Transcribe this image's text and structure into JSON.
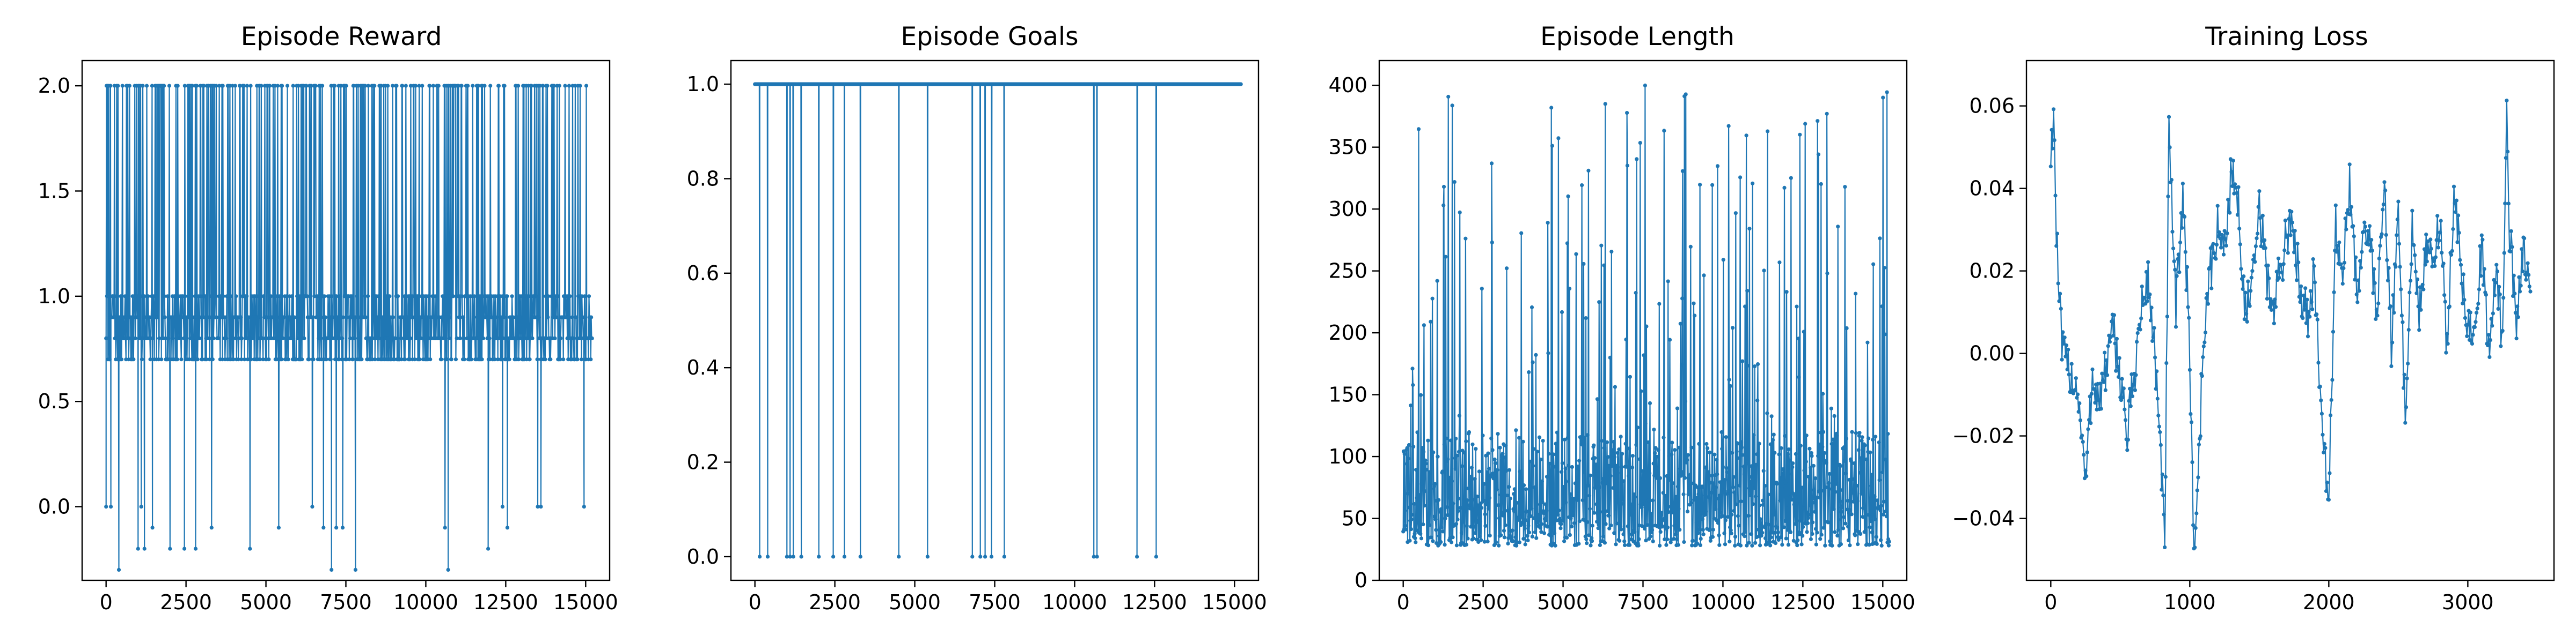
{
  "colors": {
    "series": "#1f77b4",
    "axes": "#000000",
    "background": "#ffffff"
  },
  "chart_data": [
    {
      "type": "line",
      "title": "Episode Reward",
      "xlabel": "",
      "ylabel": "",
      "xlim": [
        -750,
        15750
      ],
      "ylim": [
        -0.35,
        2.12
      ],
      "xticks": [
        0,
        2500,
        5000,
        7500,
        10000,
        12500,
        15000
      ],
      "yticks": [
        0.0,
        0.5,
        1.0,
        1.5,
        2.0
      ],
      "xtick_labels": [
        "0",
        "2500",
        "5000",
        "7500",
        "10000",
        "12500",
        "15000"
      ],
      "ytick_labels": [
        "0.0",
        "0.5",
        "1.0",
        "1.5",
        "2.0"
      ],
      "grid": false,
      "markers": true,
      "series": [
        {
          "points_count": 15200,
          "band": {
            "x_start": 0,
            "x_end": 15200,
            "min": 0.7,
            "max": 2.0,
            "levels": [
              0.7,
              0.8,
              0.9,
              1.0,
              2.0
            ]
          },
          "outliers": [
            [
              0,
              0.0
            ],
            [
              150,
              0.0
            ],
            [
              400,
              -0.3
            ],
            [
              1000,
              -0.2
            ],
            [
              1100,
              0.0
            ],
            [
              1200,
              -0.2
            ],
            [
              1450,
              -0.1
            ],
            [
              2000,
              -0.2
            ],
            [
              2450,
              -0.2
            ],
            [
              2800,
              -0.2
            ],
            [
              3300,
              -0.1
            ],
            [
              4500,
              -0.2
            ],
            [
              5400,
              -0.1
            ],
            [
              6450,
              0.0
            ],
            [
              6800,
              -0.1
            ],
            [
              7050,
              -0.3
            ],
            [
              7200,
              -0.1
            ],
            [
              7400,
              -0.1
            ],
            [
              7800,
              -0.3
            ],
            [
              10600,
              -0.1
            ],
            [
              10700,
              -0.3
            ],
            [
              11950,
              -0.2
            ],
            [
              12400,
              0.0
            ],
            [
              12550,
              -0.1
            ],
            [
              13500,
              0.0
            ],
            [
              13600,
              0.0
            ],
            [
              14950,
              0.0
            ]
          ]
        }
      ]
    },
    {
      "type": "line",
      "title": "Episode Goals",
      "xlabel": "",
      "ylabel": "",
      "xlim": [
        -750,
        15750
      ],
      "ylim": [
        -0.05,
        1.05
      ],
      "xticks": [
        0,
        2500,
        5000,
        7500,
        10000,
        12500,
        15000
      ],
      "yticks": [
        0.0,
        0.2,
        0.4,
        0.6,
        0.8,
        1.0
      ],
      "xtick_labels": [
        "0",
        "2500",
        "5000",
        "7500",
        "10000",
        "12500",
        "15000"
      ],
      "ytick_labels": [
        "0.0",
        "0.2",
        "0.4",
        "0.6",
        "0.8",
        "1.0"
      ],
      "grid": false,
      "markers": true,
      "series": [
        {
          "points_count": 15200,
          "band": {
            "x_start": 0,
            "x_end": 15200,
            "min": 1.0,
            "max": 1.0,
            "levels": [
              1.0
            ]
          },
          "outliers": [
            [
              150,
              0.0
            ],
            [
              400,
              0.0
            ],
            [
              1000,
              0.0
            ],
            [
              1100,
              0.0
            ],
            [
              1200,
              0.0
            ],
            [
              1450,
              0.0
            ],
            [
              2000,
              0.0
            ],
            [
              2450,
              0.0
            ],
            [
              2800,
              0.0
            ],
            [
              3300,
              0.0
            ],
            [
              4500,
              0.0
            ],
            [
              5400,
              0.0
            ],
            [
              6800,
              0.0
            ],
            [
              7050,
              0.0
            ],
            [
              7200,
              0.0
            ],
            [
              7400,
              0.0
            ],
            [
              7800,
              0.0
            ],
            [
              10600,
              0.0
            ],
            [
              10700,
              0.0
            ],
            [
              11950,
              0.0
            ],
            [
              12550,
              0.0
            ]
          ]
        }
      ]
    },
    {
      "type": "line",
      "title": "Episode Length",
      "xlabel": "",
      "ylabel": "",
      "xlim": [
        -750,
        15750
      ],
      "ylim": [
        0,
        420
      ],
      "xticks": [
        0,
        2500,
        5000,
        7500,
        10000,
        12500,
        15000
      ],
      "yticks": [
        0,
        50,
        100,
        150,
        200,
        250,
        300,
        350,
        400
      ],
      "xtick_labels": [
        "0",
        "2500",
        "5000",
        "7500",
        "10000",
        "12500",
        "15000"
      ],
      "ytick_labels": [
        "0",
        "50",
        "100",
        "150",
        "200",
        "250",
        "300",
        "350",
        "400"
      ],
      "grid": false,
      "markers": true,
      "series": [
        {
          "points_count": 15200,
          "band": {
            "x_start": 0,
            "x_end": 15200,
            "min": 25,
            "max": 400,
            "typical": [
              28,
              120
            ]
          },
          "outliers": []
        }
      ]
    },
    {
      "type": "line",
      "title": "Training Loss",
      "xlabel": "",
      "ylabel": "",
      "xlim": [
        -175,
        3620
      ],
      "ylim": [
        -0.055,
        0.071
      ],
      "xticks": [
        0,
        1000,
        2000,
        3000
      ],
      "yticks": [
        -0.04,
        -0.02,
        0.0,
        0.02,
        0.04,
        0.06
      ],
      "xtick_labels": [
        "0",
        "1000",
        "2000",
        "3000"
      ],
      "ytick_labels": [
        "−0.04",
        "−0.02",
        "0.00",
        "0.02",
        "0.04",
        "0.06"
      ],
      "grid": false,
      "markers": true,
      "series": [
        {
          "points_count": 3450,
          "x": [
            0,
            20,
            40,
            60,
            80,
            100,
            150,
            200,
            250,
            300,
            350,
            400,
            450,
            500,
            550,
            600,
            650,
            700,
            750,
            780,
            820,
            850,
            900,
            950,
            1000,
            1030,
            1060,
            1100,
            1150,
            1200,
            1250,
            1300,
            1350,
            1400,
            1450,
            1500,
            1550,
            1600,
            1650,
            1700,
            1750,
            1800,
            1850,
            1900,
            1950,
            2000,
            2050,
            2100,
            2150,
            2200,
            2250,
            2300,
            2350,
            2400,
            2450,
            2500,
            2550,
            2600,
            2650,
            2700,
            2750,
            2800,
            2850,
            2900,
            2950,
            3000,
            3050,
            3100,
            3150,
            3200,
            3250,
            3280,
            3300,
            3350,
            3400,
            3450
          ],
          "values": [
            0.048,
            0.059,
            0.03,
            0.012,
            0.002,
            -0.002,
            -0.005,
            -0.01,
            -0.032,
            -0.005,
            -0.012,
            -0.003,
            0.005,
            -0.005,
            -0.02,
            -0.005,
            0.01,
            0.018,
            0.0,
            -0.02,
            -0.045,
            0.052,
            0.01,
            0.04,
            0.0,
            -0.048,
            -0.03,
            0.005,
            0.02,
            0.03,
            0.025,
            0.045,
            0.035,
            0.01,
            0.015,
            0.035,
            0.02,
            0.01,
            0.02,
            0.03,
            0.028,
            0.015,
            0.01,
            0.02,
            -0.02,
            -0.035,
            0.03,
            0.02,
            0.04,
            0.015,
            0.03,
            0.025,
            0.01,
            0.045,
            0.0,
            0.035,
            -0.015,
            0.03,
            0.01,
            0.025,
            0.02,
            0.035,
            0.0,
            0.04,
            0.02,
            0.005,
            0.01,
            0.025,
            0.0,
            0.02,
            0.003,
            0.065,
            0.03,
            0.005,
            0.025,
            0.015
          ]
        }
      ]
    }
  ]
}
